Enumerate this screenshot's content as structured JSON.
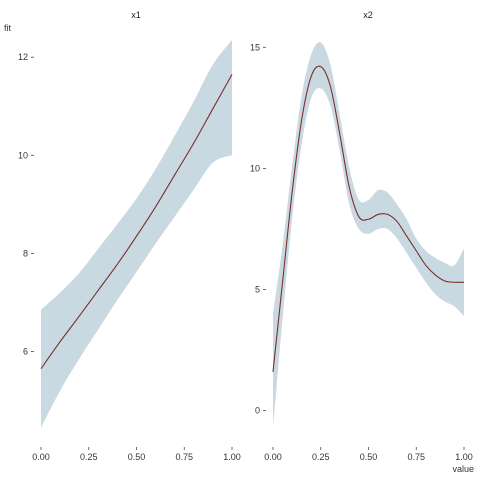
{
  "chart_data": [
    {
      "type": "line",
      "title": "x1",
      "ylabel": "fit",
      "xlabel": "",
      "xlim": [
        0,
        1
      ],
      "ylim": [
        4.4,
        12.35
      ],
      "x_ticks": [
        0.0,
        0.25,
        0.5,
        0.75,
        1.0
      ],
      "x_tick_labels": [
        "0.00",
        "0.25",
        "0.50",
        "0.75",
        "1.00"
      ],
      "y_ticks": [
        6,
        8,
        10,
        12
      ],
      "y_tick_labels": [
        "6",
        "8",
        "10",
        "12"
      ],
      "grid": false,
      "x": [
        0.0,
        0.1,
        0.2,
        0.3,
        0.4,
        0.5,
        0.6,
        0.7,
        0.8,
        0.9,
        1.0
      ],
      "fit": [
        5.65,
        6.2,
        6.72,
        7.25,
        7.78,
        8.35,
        8.95,
        9.6,
        10.25,
        10.95,
        11.65
      ],
      "lower": [
        4.45,
        5.2,
        5.85,
        6.45,
        7.05,
        7.62,
        8.2,
        8.75,
        9.3,
        9.85,
        10.0
      ],
      "upper": [
        6.85,
        7.2,
        7.6,
        8.1,
        8.6,
        9.12,
        9.72,
        10.4,
        11.1,
        11.85,
        12.35
      ],
      "line_color": "#7a2e2e",
      "band_color": "#c9d9e1"
    },
    {
      "type": "line",
      "title": "x2",
      "ylabel": "",
      "xlabel": "value",
      "xlim": [
        0,
        1
      ],
      "ylim": [
        -0.8,
        15.3
      ],
      "x_ticks": [
        0.0,
        0.25,
        0.5,
        0.75,
        1.0
      ],
      "x_tick_labels": [
        "0.00",
        "0.25",
        "0.50",
        "0.75",
        "1.00"
      ],
      "y_ticks": [
        0,
        5,
        10,
        15
      ],
      "y_tick_labels": [
        "0",
        "5",
        "10",
        "15"
      ],
      "grid": false,
      "x": [
        0.0,
        0.05,
        0.1,
        0.15,
        0.2,
        0.25,
        0.3,
        0.35,
        0.4,
        0.45,
        0.5,
        0.55,
        0.6,
        0.65,
        0.7,
        0.75,
        0.8,
        0.85,
        0.9,
        0.95,
        1.0
      ],
      "fit": [
        1.6,
        5.3,
        9.0,
        12.0,
        13.8,
        14.2,
        13.4,
        11.4,
        9.2,
        8.0,
        7.9,
        8.1,
        8.1,
        7.8,
        7.2,
        6.6,
        6.0,
        5.6,
        5.35,
        5.3,
        5.3
      ],
      "lower": [
        -0.7,
        3.8,
        7.9,
        11.0,
        12.9,
        13.3,
        12.6,
        10.7,
        8.5,
        7.5,
        7.3,
        7.5,
        7.5,
        7.1,
        6.5,
        5.9,
        5.3,
        4.8,
        4.5,
        4.3,
        3.9
      ],
      "upper": [
        4.0,
        6.8,
        10.1,
        13.0,
        14.7,
        15.2,
        14.3,
        12.2,
        10.0,
        8.7,
        8.7,
        9.1,
        9.0,
        8.5,
        7.9,
        7.1,
        6.6,
        6.3,
        6.1,
        6.0,
        6.7
      ],
      "line_color": "#7a2e2e",
      "band_color": "#c9d9e1"
    }
  ]
}
